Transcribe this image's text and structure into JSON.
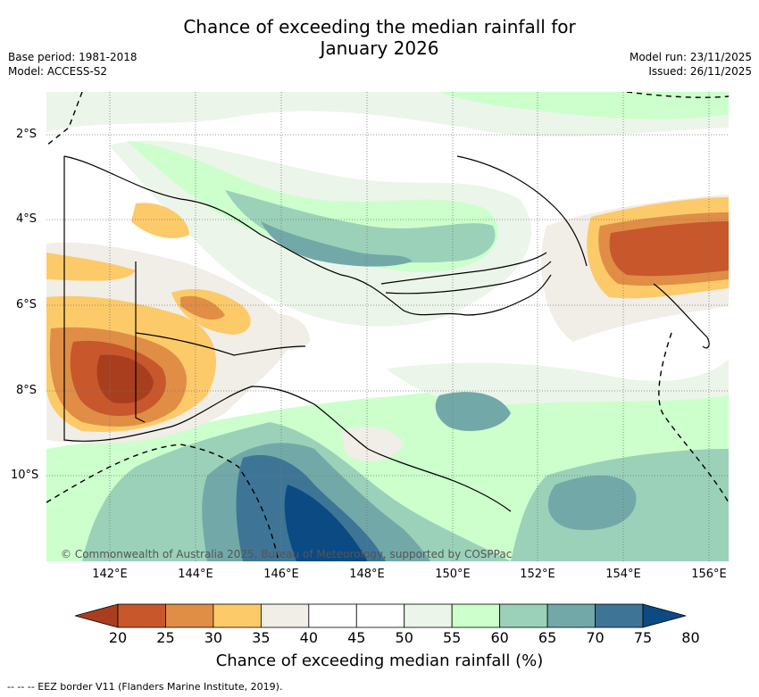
{
  "title_line1": "Chance of exceeding the median rainfall for",
  "title_line2": "January 2026",
  "base_period": "Base period: 1981-2018",
  "model": "Model: ACCESS-S2",
  "model_run": "Model run: 23/11/2025",
  "issued": "Issued: 26/11/2025",
  "credit": "© Commonwealth of Australia 2025, Bureau of Meteorology, supported by COSPPac",
  "lat_labels": [
    "2°S",
    "4°S",
    "6°S",
    "8°S",
    "10°S"
  ],
  "lon_labels": [
    "142°E",
    "144°E",
    "146°E",
    "148°E",
    "150°E",
    "152°E",
    "154°E",
    "156°E"
  ],
  "colorbar": {
    "ticks": [
      "20",
      "25",
      "30",
      "35",
      "40",
      "45",
      "50",
      "55",
      "60",
      "65",
      "70",
      "75",
      "80"
    ],
    "colors": [
      "#a93e1e",
      "#c8572c",
      "#e08e45",
      "#fdca69",
      "#f1ede7",
      "#ffffff",
      "#ffffff",
      "#ecf5ea",
      "#ccffcc",
      "#9bd1b9",
      "#72a9a8",
      "#3e7596",
      "#0b4a83"
    ],
    "label": "Chance of exceeding median rainfall (%)"
  },
  "footer": "--  --  -- EEZ border V11 (Flanders Marine Institute, 2019)."
}
